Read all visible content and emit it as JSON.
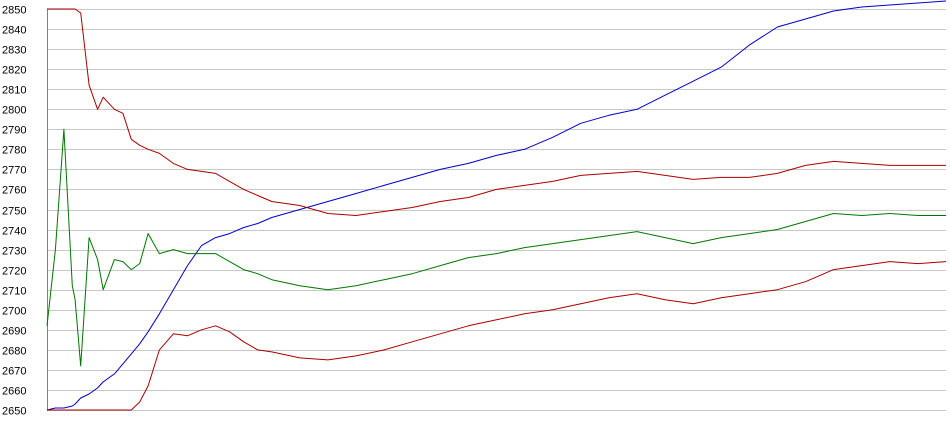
{
  "chart_data": {
    "type": "line",
    "title": "",
    "xlabel": "",
    "ylabel": "",
    "ylim": [
      2650,
      2850
    ],
    "yticks": [
      2650,
      2660,
      2670,
      2680,
      2690,
      2700,
      2710,
      2720,
      2730,
      2740,
      2750,
      2760,
      2770,
      2780,
      2790,
      2800,
      2810,
      2820,
      2830,
      2840,
      2850
    ],
    "grid": "horizontal",
    "legend": "none",
    "x": [
      0,
      3,
      6,
      9,
      10,
      12,
      15,
      18,
      20,
      24,
      27,
      30,
      33,
      36,
      40,
      45,
      50,
      55,
      60,
      65,
      70,
      75,
      80,
      90,
      100,
      110,
      120,
      130,
      140,
      150,
      160,
      170,
      180,
      190,
      200,
      210,
      220,
      230,
      240,
      250,
      260,
      270,
      280,
      290,
      300,
      310,
      320
    ],
    "series": [
      {
        "color": "#0000cc",
        "values": [
          2650,
          2651,
          2651,
          2652,
          2653,
          2656,
          2658,
          2661,
          2664,
          2668,
          2673,
          2678,
          2683,
          2689,
          2698,
          2710,
          2722,
          2732,
          2736,
          2738,
          2741,
          2743,
          2746,
          2750,
          2754,
          2758,
          2762,
          2766,
          2770,
          2773,
          2777,
          2780,
          2786,
          2793,
          2797,
          2800,
          2807,
          2814,
          2821,
          2832,
          2841,
          2845,
          2849,
          2851,
          2852,
          2853,
          2854
        ]
      },
      {
        "color": "#aa0000",
        "values": [
          2850,
          2850,
          2850,
          2850,
          2850,
          2848,
          2812,
          2800,
          2806,
          2800,
          2798,
          2785,
          2782,
          2780,
          2778,
          2773,
          2770,
          2769,
          2768,
          2764,
          2760,
          2757,
          2754,
          2752,
          2748,
          2747,
          2749,
          2751,
          2754,
          2756,
          2760,
          2762,
          2764,
          2767,
          2768,
          2769,
          2767,
          2765,
          2766,
          2766,
          2768,
          2772,
          2774,
          2773,
          2772,
          2772,
          2772
        ]
      },
      {
        "color": "#007700",
        "values": [
          2692,
          2730,
          2790,
          2712,
          2705,
          2672,
          2736,
          2725,
          2710,
          2725,
          2724,
          2720,
          2723,
          2738,
          2728,
          2730,
          2728,
          2728,
          2728,
          2724,
          2720,
          2718,
          2715,
          2712,
          2710,
          2712,
          2715,
          2718,
          2722,
          2726,
          2728,
          2731,
          2733,
          2735,
          2737,
          2739,
          2736,
          2733,
          2736,
          2738,
          2740,
          2744,
          2748,
          2747,
          2748,
          2747,
          2747
        ]
      },
      {
        "color": "#aa0000",
        "values": [
          2650,
          2650,
          2650,
          2650,
          2650,
          2650,
          2650,
          2650,
          2650,
          2650,
          2650,
          2650,
          2654,
          2662,
          2680,
          2688,
          2687,
          2690,
          2692,
          2689,
          2684,
          2680,
          2679,
          2676,
          2675,
          2677,
          2680,
          2684,
          2688,
          2692,
          2695,
          2698,
          2700,
          2703,
          2706,
          2708,
          2705,
          2703,
          2706,
          2708,
          2710,
          2714,
          2720,
          2722,
          2724,
          2723,
          2724
        ]
      }
    ]
  }
}
